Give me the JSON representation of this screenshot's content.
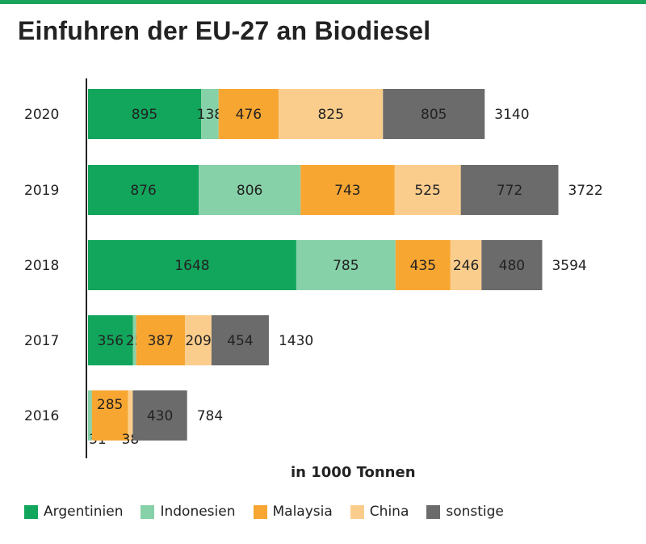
{
  "chart_data": {
    "type": "bar",
    "orientation": "horizontal",
    "stacked": true,
    "title": "Einfuhren der EU-27 an Biodiesel",
    "xlabel": "in 1000 Tonnen",
    "ylabel": "",
    "xlim": [
      0,
      4000
    ],
    "grid": false,
    "legend_position": "bottom",
    "categories": [
      "2020",
      "2019",
      "2018",
      "2017",
      "2016"
    ],
    "series": [
      {
        "name": "Argentinien",
        "color": "#12a55c",
        "values": [
          895,
          876,
          1648,
          356,
          0
        ]
      },
      {
        "name": "Indonesien",
        "color": "#86d1a8",
        "values": [
          138,
          806,
          785,
          25,
          31
        ]
      },
      {
        "name": "Malaysia",
        "color": "#f7a632",
        "values": [
          476,
          743,
          435,
          387,
          285
        ]
      },
      {
        "name": "China",
        "color": "#fbcd8d",
        "values": [
          825,
          525,
          246,
          209,
          38
        ]
      },
      {
        "name": "sonstige",
        "color": "#6b6b6b",
        "values": [
          805,
          772,
          480,
          454,
          430
        ]
      }
    ],
    "totals": [
      3140,
      3722,
      3594,
      1430,
      784
    ]
  }
}
